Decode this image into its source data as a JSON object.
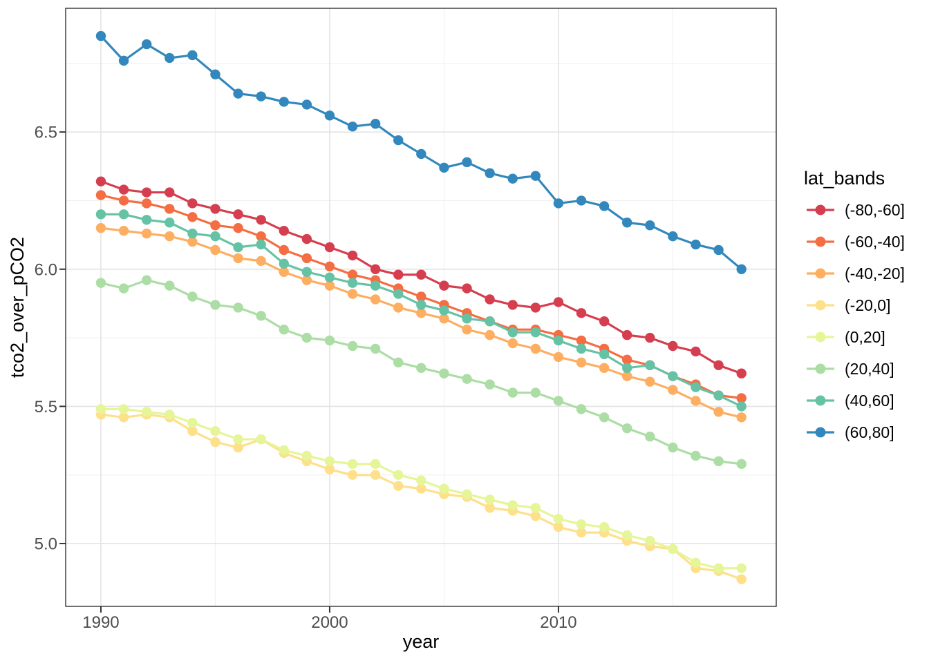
{
  "figure": {
    "background_color": "#ffffff",
    "panel_border_color": "#333333",
    "grid_major_color": "#e3e3e3",
    "grid_minor_color": "#efefef",
    "tick_mark_color": "#333333",
    "tick_label_color": "#4d4d4d",
    "title_color": "#000000"
  },
  "chart_data": {
    "type": "line",
    "title": "",
    "xlabel": "year",
    "ylabel": "tco2_over_pCO2",
    "grid": true,
    "legend": {
      "title": "lat_bands",
      "position": "right"
    },
    "xlim": [
      1988.46,
      2019.52
    ],
    "ylim": [
      4.771,
      6.951
    ],
    "x_ticks": [
      1990,
      2000,
      2010
    ],
    "x_minor_ticks": [
      1995,
      2005,
      2015
    ],
    "y_ticks": [
      5.0,
      5.5,
      6.0,
      6.5
    ],
    "y_tick_labels": [
      "5.0",
      "5.5",
      "6.0",
      "6.5"
    ],
    "y_minor_ticks": [
      5.25,
      5.75,
      6.25,
      6.75
    ],
    "x": [
      1990,
      1991,
      1992,
      1993,
      1994,
      1995,
      1996,
      1997,
      1998,
      1999,
      2000,
      2001,
      2002,
      2003,
      2004,
      2005,
      2006,
      2007,
      2008,
      2009,
      2010,
      2011,
      2012,
      2013,
      2014,
      2015,
      2016,
      2017,
      2018
    ],
    "series": [
      {
        "name": "(-80,-60]",
        "color": "#d53e4f",
        "values": [
          6.32,
          6.29,
          6.28,
          6.28,
          6.24,
          6.22,
          6.2,
          6.18,
          6.14,
          6.11,
          6.08,
          6.05,
          6.0,
          5.98,
          5.98,
          5.94,
          5.93,
          5.89,
          5.87,
          5.86,
          5.88,
          5.84,
          5.81,
          5.76,
          5.75,
          5.72,
          5.7,
          5.65,
          5.62
        ]
      },
      {
        "name": "(-60,-40]",
        "color": "#f46d43",
        "values": [
          6.27,
          6.25,
          6.24,
          6.22,
          6.19,
          6.16,
          6.15,
          6.12,
          6.07,
          6.04,
          6.01,
          5.98,
          5.96,
          5.93,
          5.9,
          5.87,
          5.84,
          5.81,
          5.78,
          5.78,
          5.76,
          5.74,
          5.71,
          5.67,
          5.65,
          5.61,
          5.58,
          5.54,
          5.53
        ]
      },
      {
        "name": "(-40,-20]",
        "color": "#fdae61",
        "values": [
          6.15,
          6.14,
          6.13,
          6.12,
          6.1,
          6.07,
          6.04,
          6.03,
          5.99,
          5.96,
          5.94,
          5.91,
          5.89,
          5.86,
          5.84,
          5.82,
          5.78,
          5.76,
          5.73,
          5.71,
          5.68,
          5.66,
          5.64,
          5.61,
          5.59,
          5.56,
          5.52,
          5.48,
          5.46
        ]
      },
      {
        "name": "(-20,0]",
        "color": "#fee08b",
        "values": [
          5.47,
          5.46,
          5.47,
          5.46,
          5.41,
          5.37,
          5.35,
          5.38,
          5.33,
          5.3,
          5.27,
          5.25,
          5.25,
          5.21,
          5.2,
          5.18,
          5.17,
          5.13,
          5.12,
          5.1,
          5.06,
          5.04,
          5.04,
          5.01,
          4.99,
          4.98,
          4.91,
          4.9,
          4.87
        ]
      },
      {
        "name": "(0,20]",
        "color": "#e6f598",
        "values": [
          5.49,
          5.49,
          5.48,
          5.47,
          5.44,
          5.41,
          5.38,
          5.38,
          5.34,
          5.32,
          5.3,
          5.29,
          5.29,
          5.25,
          5.23,
          5.2,
          5.18,
          5.16,
          5.14,
          5.13,
          5.09,
          5.07,
          5.06,
          5.03,
          5.01,
          4.98,
          4.93,
          4.91,
          4.91
        ]
      },
      {
        "name": "(20,40]",
        "color": "#abdda4",
        "values": [
          5.95,
          5.93,
          5.96,
          5.94,
          5.9,
          5.87,
          5.86,
          5.83,
          5.78,
          5.75,
          5.74,
          5.72,
          5.71,
          5.66,
          5.64,
          5.62,
          5.6,
          5.58,
          5.55,
          5.55,
          5.52,
          5.49,
          5.46,
          5.42,
          5.39,
          5.35,
          5.32,
          5.3,
          5.29
        ]
      },
      {
        "name": "(40,60]",
        "color": "#66c2a5",
        "values": [
          6.2,
          6.2,
          6.18,
          6.17,
          6.13,
          6.12,
          6.08,
          6.09,
          6.02,
          5.99,
          5.97,
          5.95,
          5.94,
          5.91,
          5.87,
          5.85,
          5.82,
          5.81,
          5.77,
          5.77,
          5.74,
          5.71,
          5.69,
          5.64,
          5.65,
          5.61,
          5.57,
          5.54,
          5.5
        ]
      },
      {
        "name": "(60,80]",
        "color": "#3288bd",
        "values": [
          6.85,
          6.76,
          6.82,
          6.77,
          6.78,
          6.71,
          6.64,
          6.63,
          6.61,
          6.6,
          6.56,
          6.52,
          6.53,
          6.47,
          6.42,
          6.37,
          6.39,
          6.35,
          6.33,
          6.34,
          6.24,
          6.25,
          6.23,
          6.17,
          6.16,
          6.12,
          6.09,
          6.07,
          6.0
        ]
      }
    ]
  }
}
